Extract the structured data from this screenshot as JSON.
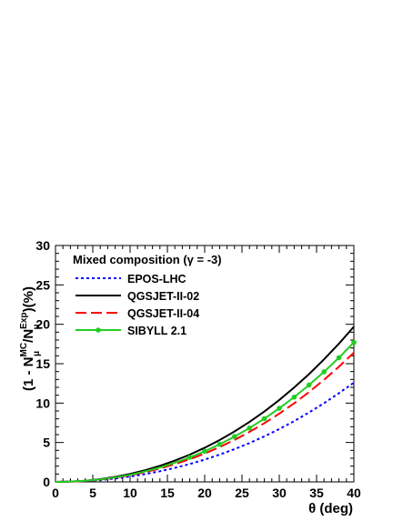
{
  "chart_data": {
    "type": "line",
    "title": "",
    "xlabel": "θ (deg)",
    "ylabel": "(1 - N_μ^MC/N_μ^Exp)(%)",
    "ylabel_parts": {
      "prefix": "(1 - N",
      "mu": "μ",
      "mc": "MC",
      "slash": "/N",
      "exp": "Exp",
      "suffix": ")(%)"
    },
    "xlim": [
      0,
      40
    ],
    "ylim": [
      0,
      30
    ],
    "x_ticks": [
      0,
      5,
      10,
      15,
      20,
      25,
      30,
      35,
      40
    ],
    "y_ticks": [
      0,
      5,
      10,
      15,
      20,
      25,
      30
    ],
    "grid": false,
    "legend": {
      "placement": "top-left",
      "title": "Mixed composition (γ = -3)"
    },
    "x": [
      0,
      2,
      4,
      6,
      8,
      10,
      12,
      14,
      16,
      18,
      20,
      22,
      24,
      26,
      28,
      30,
      32,
      34,
      36,
      38,
      40
    ],
    "series": [
      {
        "name": "EPOS-LHC",
        "color": "#0000ff",
        "dash": "dotted",
        "markers": false,
        "values": [
          0,
          0.03,
          0.11,
          0.24,
          0.43,
          0.68,
          0.99,
          1.35,
          1.78,
          2.27,
          2.83,
          3.46,
          4.16,
          4.93,
          5.78,
          6.71,
          7.72,
          8.82,
          9.99,
          11.26,
          12.6
        ]
      },
      {
        "name": "QGSJET-II-02",
        "color": "#000000",
        "dash": "solid",
        "markers": false,
        "values": [
          0,
          0.04,
          0.15,
          0.35,
          0.64,
          1.01,
          1.48,
          2.04,
          2.7,
          3.46,
          4.33,
          5.31,
          6.4,
          7.61,
          8.94,
          10.39,
          11.98,
          13.69,
          15.55,
          17.55,
          19.7
        ]
      },
      {
        "name": "QGSJET-II-04",
        "color": "#ff0000",
        "dash": "long-dash",
        "markers": false,
        "values": [
          0,
          0.03,
          0.13,
          0.29,
          0.53,
          0.84,
          1.23,
          1.7,
          2.25,
          2.88,
          3.6,
          4.42,
          5.33,
          6.34,
          7.45,
          8.66,
          9.98,
          11.41,
          12.96,
          14.62,
          16.4
        ]
      },
      {
        "name": "SIBYLL 2.1",
        "color": "#22cc22",
        "dash": "solid",
        "markers": true,
        "values": [
          0,
          0.04,
          0.14,
          0.31,
          0.57,
          0.9,
          1.33,
          1.83,
          2.43,
          3.11,
          3.89,
          4.77,
          5.75,
          6.83,
          8.03,
          9.34,
          10.76,
          12.3,
          13.97,
          15.76,
          17.7
        ]
      }
    ]
  }
}
